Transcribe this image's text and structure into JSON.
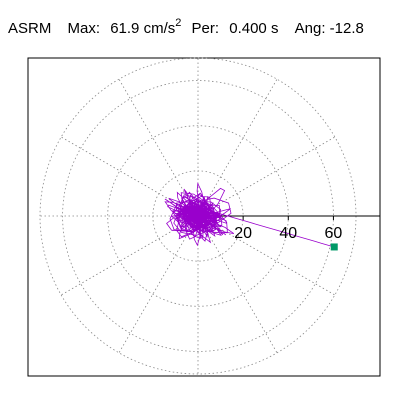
{
  "header": {
    "name": "ASRM",
    "max_label": "Max:",
    "max_value": "61.9",
    "max_unit": "cm/s",
    "max_unit_exp": "2",
    "per_label": "Per:",
    "per_value": "0.400",
    "per_unit": "s",
    "ang_label": "Ang:",
    "ang_value": "-12.8"
  },
  "chart_data": {
    "type": "polar-orbit",
    "r_ticks": [
      20,
      40,
      60
    ],
    "r_tick_labels": [
      "20",
      "40",
      "60"
    ],
    "r_max": 70,
    "angle_gridlines_deg": [
      0,
      30,
      60,
      90,
      120,
      150,
      180,
      210,
      240,
      270,
      300,
      330
    ],
    "grid": true,
    "trace_color": "#9900cc",
    "end_marker_color": "#009966",
    "end_point": {
      "r": 61.9,
      "angle_deg": -12.8
    }
  }
}
